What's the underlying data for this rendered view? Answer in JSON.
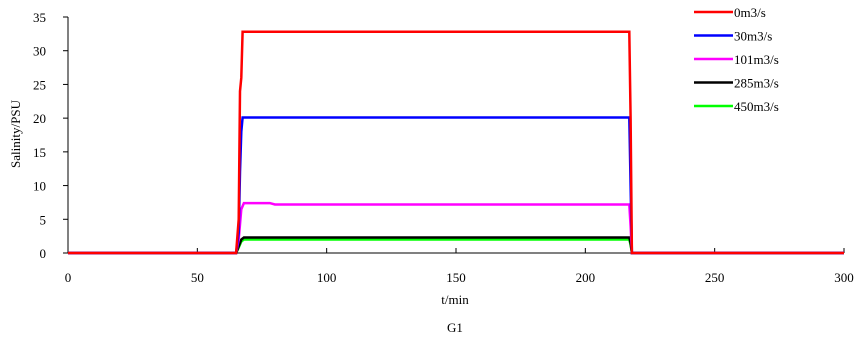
{
  "chart_data": {
    "type": "line",
    "caption": "G1",
    "xlabel": "t/min",
    "ylabel": "Salinity/PSU",
    "xlim": [
      0,
      300
    ],
    "ylim": [
      0,
      35
    ],
    "xticks": [
      0,
      50,
      100,
      150,
      200,
      250,
      300
    ],
    "yticks": [
      0,
      5,
      10,
      15,
      20,
      25,
      30,
      35
    ],
    "grid": false,
    "legend_position": "top-right",
    "series": [
      {
        "name": "0m3/s",
        "color": "#ff0000",
        "x": [
          0,
          65,
          66,
          66.5,
          67,
          67.5,
          217,
          217.5,
          218,
          300
        ],
        "y": [
          0,
          0,
          5,
          24,
          26,
          32.8,
          32.8,
          20,
          0,
          0
        ]
      },
      {
        "name": "30m3/s",
        "color": "#0000ff",
        "x": [
          0,
          65,
          66,
          66.5,
          67,
          67.5,
          217,
          217.5,
          218,
          300
        ],
        "y": [
          0,
          0,
          3,
          12,
          18,
          20.1,
          20.1,
          10,
          0,
          0
        ]
      },
      {
        "name": "101m3/s",
        "color": "#ff00ff",
        "x": [
          0,
          65,
          66,
          67,
          68,
          78,
          80,
          217,
          217.5,
          218,
          300
        ],
        "y": [
          0,
          0,
          2,
          6.5,
          7.4,
          7.4,
          7.2,
          7.2,
          4,
          0,
          0
        ]
      },
      {
        "name": "285m3/s",
        "color": "#000000",
        "x": [
          0,
          65,
          66,
          67,
          68,
          217,
          217.5,
          218,
          300
        ],
        "y": [
          0,
          0,
          1,
          2,
          2.3,
          2.3,
          1.5,
          0,
          0
        ]
      },
      {
        "name": "450m3/s",
        "color": "#00ff00",
        "x": [
          0,
          65,
          66,
          67,
          68,
          217,
          217.5,
          218,
          300
        ],
        "y": [
          0,
          0,
          0.8,
          1.7,
          2.0,
          2.0,
          1.2,
          0,
          0
        ]
      }
    ]
  }
}
